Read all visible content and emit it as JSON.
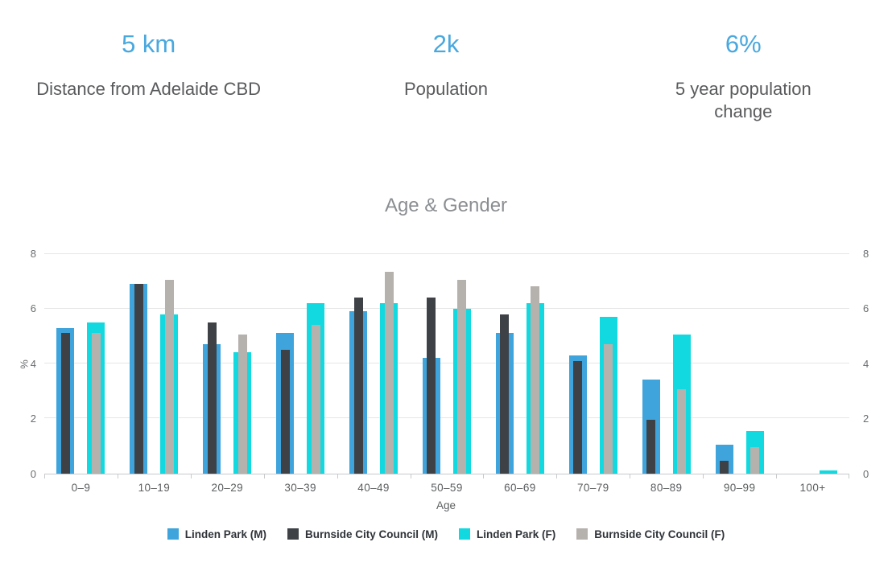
{
  "stats": [
    {
      "value": "5 km",
      "label": "Distance from Adelaide CBD"
    },
    {
      "value": "2k",
      "label": "Population"
    },
    {
      "value": "6%",
      "label": "5 year population change"
    }
  ],
  "chart_data": {
    "type": "bar",
    "title": "Age & Gender",
    "xlabel": "Age",
    "ylabel": "%",
    "ylim": [
      0,
      8
    ],
    "yticks": [
      0,
      2,
      4,
      6,
      8
    ],
    "grid": true,
    "y_axis_right_mirrored": true,
    "legend_position": "bottom",
    "bar_style": "overlaid-pairs (wide back bar = Linden Park, narrow front bar = Burnside City Council)",
    "categories": [
      "0–9",
      "10–19",
      "20–29",
      "30–39",
      "40–49",
      "50–59",
      "60–69",
      "70–79",
      "80–89",
      "90–99",
      "100+"
    ],
    "series": [
      {
        "name": "Linden Park (M)",
        "color": "#3fa4dc",
        "values": [
          5.3,
          6.9,
          4.7,
          5.1,
          5.9,
          4.2,
          5.1,
          4.3,
          3.4,
          1.05,
          0
        ]
      },
      {
        "name": "Burnside City Council (M)",
        "color": "#3e4247",
        "values": [
          5.1,
          6.9,
          5.5,
          4.5,
          6.4,
          6.4,
          5.8,
          4.1,
          1.95,
          0.45,
          0
        ]
      },
      {
        "name": "Linden Park (F)",
        "color": "#12d9df",
        "values": [
          5.5,
          5.8,
          4.4,
          6.2,
          6.2,
          6.0,
          6.2,
          5.7,
          5.05,
          1.55,
          0.1
        ]
      },
      {
        "name": "Burnside City Council (F)",
        "color": "#b5b1ad",
        "values": [
          5.1,
          7.05,
          5.05,
          5.4,
          7.35,
          7.05,
          6.8,
          4.7,
          3.05,
          0.95,
          0
        ]
      }
    ]
  },
  "colors": {
    "stat_accent": "#49a8de",
    "stat_label_text": "#595a5c",
    "chart_title_text": "#8b8e91",
    "axis_line": "#c7c9cb",
    "gridline": "#e6e6e6",
    "axis_text": "#6a6d70",
    "legend_text": "#2f3338"
  }
}
